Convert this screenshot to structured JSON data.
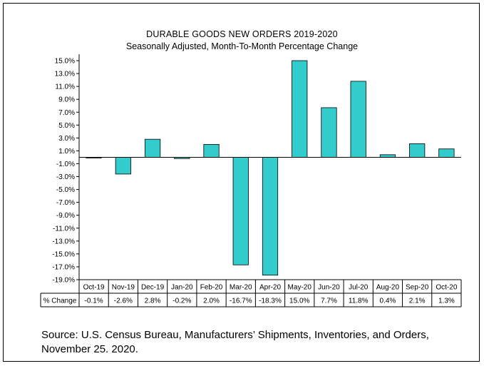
{
  "chart_data": {
    "type": "bar",
    "title": "DURABLE GOODS NEW ORDERS 2019-2020",
    "subtitle": "Seasonally Adjusted,  Month-To-Month Percentage Change",
    "categories": [
      "Oct-19",
      "Nov-19",
      "Dec-19",
      "Jan-20",
      "Feb-20",
      "Mar-20",
      "Apr-20",
      "May-20",
      "Jun-20",
      "Jul-20",
      "Aug-20",
      "Sep-20",
      "Oct-20"
    ],
    "series": [
      {
        "name": "% Change",
        "values": [
          -0.1,
          -2.6,
          2.8,
          -0.2,
          2.0,
          -16.7,
          -18.3,
          15.0,
          7.7,
          11.8,
          0.4,
          2.1,
          1.3
        ]
      }
    ],
    "value_labels": [
      "-0.1%",
      "-2.6%",
      "2.8%",
      "-0.2%",
      "2.0%",
      "-16.7%",
      "-18.3%",
      "15.0%",
      "7.7%",
      "11.8%",
      "0.4%",
      "2.1%",
      "1.3%"
    ],
    "y_ticks": [
      15,
      13,
      11,
      9,
      7,
      5,
      3,
      1,
      -1,
      -3,
      -5,
      -7,
      -9,
      -11,
      -13,
      -15,
      -17,
      -19
    ],
    "y_tick_labels": [
      "15.0%",
      "13.0%",
      "11.0%",
      "9.0%",
      "7.0%",
      "5.0%",
      "3.0%",
      "1.0%",
      "-1.0%",
      "-3.0%",
      "-5.0%",
      "-7.0%",
      "-9.0%",
      "-11.0%",
      "-13.0%",
      "-15.0%",
      "-17.0%",
      "-19.0%"
    ],
    "ylim": [
      -19,
      16
    ],
    "xlabel": "",
    "ylabel": "",
    "grid": false,
    "bar_color": "#33CCCC",
    "data_table": true
  },
  "source_text": "Source: U.S. Census Bureau, Manufacturers’ Shipments, Inventories, and Orders, November 25. 2020."
}
